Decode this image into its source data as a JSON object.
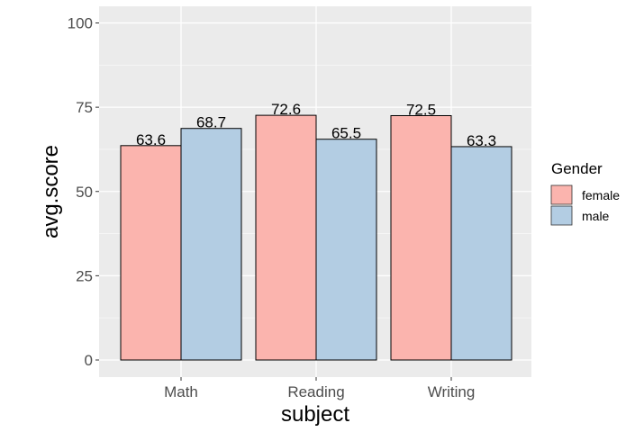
{
  "chart_data": {
    "type": "bar",
    "categories": [
      "Math",
      "Reading",
      "Writing"
    ],
    "series": [
      {
        "name": "female",
        "values": [
          63.6,
          72.6,
          72.5
        ],
        "color": "#fbb4ae"
      },
      {
        "name": "male",
        "values": [
          68.7,
          65.5,
          63.3
        ],
        "color": "#b3cde3"
      }
    ],
    "data_labels": [
      [
        "63.6",
        "72.6",
        "72.5"
      ],
      [
        "68.7",
        "65.5",
        "63.3"
      ]
    ],
    "xlabel": "subject",
    "ylabel": "avg.score",
    "ylim": [
      0,
      100
    ],
    "yticks": [
      0,
      25,
      50,
      75,
      100
    ],
    "legend": {
      "title": "Gender",
      "position": "right"
    },
    "grid": true,
    "panel_color": "#ebebeb"
  }
}
